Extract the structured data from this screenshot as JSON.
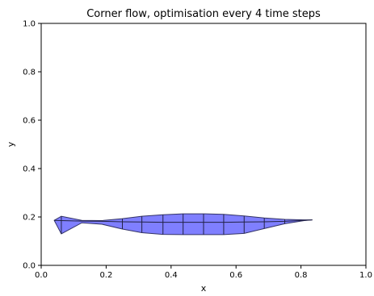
{
  "chart_data": {
    "type": "area",
    "title": "Corner flow, optimisation every 4 time steps",
    "xlabel": "x",
    "ylabel": "y",
    "xlim": [
      0.0,
      1.0
    ],
    "ylim": [
      0.0,
      1.0
    ],
    "xticks": [
      "0.0",
      "0.2",
      "0.4",
      "0.6",
      "0.8",
      "1.0"
    ],
    "yticks": [
      "0.0",
      "0.2",
      "0.4",
      "0.6",
      "0.8",
      "1.0"
    ],
    "grid": false,
    "fill_color": "#7f7fff",
    "edge_color": "#333366",
    "mesh_boundary": [
      [
        0.04,
        0.186
      ],
      [
        0.062,
        0.203
      ],
      [
        0.125,
        0.186
      ],
      [
        0.187,
        0.185
      ],
      [
        0.25,
        0.193
      ],
      [
        0.31,
        0.203
      ],
      [
        0.375,
        0.209
      ],
      [
        0.437,
        0.213
      ],
      [
        0.5,
        0.213
      ],
      [
        0.562,
        0.211
      ],
      [
        0.625,
        0.204
      ],
      [
        0.687,
        0.196
      ],
      [
        0.75,
        0.19
      ],
      [
        0.81,
        0.188
      ],
      [
        0.835,
        0.188
      ],
      [
        0.81,
        0.185
      ],
      [
        0.75,
        0.172
      ],
      [
        0.687,
        0.152
      ],
      [
        0.625,
        0.132
      ],
      [
        0.562,
        0.127
      ],
      [
        0.5,
        0.127
      ],
      [
        0.437,
        0.127
      ],
      [
        0.375,
        0.128
      ],
      [
        0.31,
        0.135
      ],
      [
        0.25,
        0.15
      ],
      [
        0.187,
        0.17
      ],
      [
        0.125,
        0.176
      ],
      [
        0.062,
        0.13
      ],
      [
        0.04,
        0.186
      ]
    ],
    "mesh_verticals": [
      [
        0.062,
        0.13,
        0.203
      ],
      [
        0.25,
        0.15,
        0.193
      ],
      [
        0.31,
        0.135,
        0.203
      ],
      [
        0.375,
        0.128,
        0.209
      ],
      [
        0.437,
        0.127,
        0.213
      ],
      [
        0.5,
        0.127,
        0.213
      ],
      [
        0.562,
        0.127,
        0.211
      ],
      [
        0.625,
        0.132,
        0.204
      ],
      [
        0.687,
        0.152,
        0.196
      ],
      [
        0.75,
        0.172,
        0.19
      ],
      [
        0.81,
        0.185,
        0.188
      ]
    ],
    "mesh_horizontals": [
      [
        [
          0.04,
          0.186
        ],
        [
          0.062,
          0.185
        ],
        [
          0.125,
          0.183
        ],
        [
          0.187,
          0.182
        ],
        [
          0.25,
          0.18
        ],
        [
          0.31,
          0.179
        ],
        [
          0.375,
          0.178
        ],
        [
          0.437,
          0.178
        ],
        [
          0.5,
          0.178
        ],
        [
          0.562,
          0.178
        ],
        [
          0.625,
          0.179
        ],
        [
          0.687,
          0.18
        ],
        [
          0.75,
          0.182
        ],
        [
          0.81,
          0.186
        ],
        [
          0.835,
          0.188
        ]
      ]
    ]
  }
}
